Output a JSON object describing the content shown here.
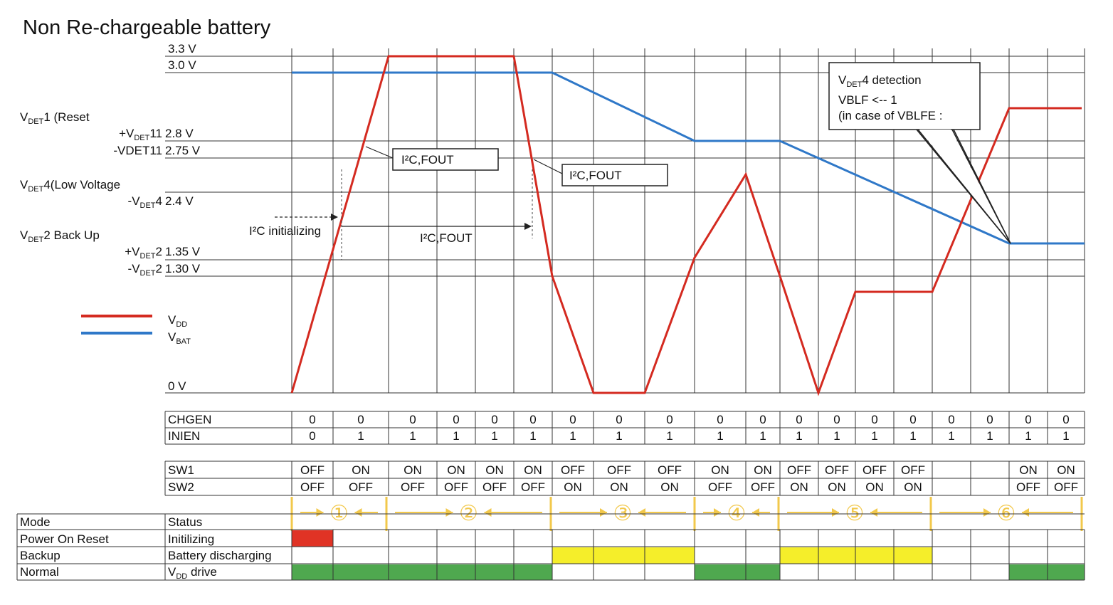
{
  "title": "Non Re-chargeable battery",
  "voltage_ticks": [
    "3.3 V",
    "3.0 V",
    "2.8 V",
    "2.75 V",
    "2.4 V",
    "1.35 V",
    "1.30 V",
    "0 V"
  ],
  "left_labels": {
    "vdet1_main": "V",
    "vdet1_sub": "DET",
    "vdet1_rest": "1 (Reset",
    "vdet11_plus_pre": "+V",
    "vdet11_plus_sub": "DET",
    "vdet11_plus_post": "11",
    "vdet11_minus": "-VDET11",
    "vdet4_main": "V",
    "vdet4_sub": "DET",
    "vdet4_rest": "4(Low Voltage",
    "vdet4_minus_pre": "-V",
    "vdet4_minus_sub": "DET",
    "vdet4_minus_post": "4",
    "vdet2_main": "V",
    "vdet2_sub": "DET",
    "vdet2_rest": "2  Back Up",
    "vdet2_plus_pre": "+V",
    "vdet2_plus_sub": "DET",
    "vdet2_plus_post": "2",
    "vdet2_minus_pre": "-V",
    "vdet2_minus_sub": "DET",
    "vdet2_minus_post": "2"
  },
  "legend": {
    "vdd_main": "V",
    "vdd_sub": "DD",
    "vbat_main": "V",
    "vbat_sub": "BAT",
    "vdd_color": "#d42a20",
    "vbat_color": "#2f78c8"
  },
  "annotations": {
    "i2c_fout_1": "I²C,FOUT",
    "i2c_fout_2": "I²C,FOUT",
    "i2c_fout_3": "I²C,FOUT",
    "i2c_initializing": "I²C initializing",
    "vdet4_box_line1_pre": "V",
    "vdet4_box_line1_sub": "DET",
    "vdet4_box_line1_post": "4 detection",
    "vdet4_box_line2": "VBLF  <--  1",
    "vdet4_box_line3": "(in case of VBLFE :"
  },
  "signal_table": {
    "row_labels": [
      "CHGEN",
      "INIEN",
      "SW1",
      "SW2"
    ],
    "chgen": [
      "0",
      "0",
      "0",
      "0",
      "0",
      "0",
      "0",
      "0",
      "0",
      "0",
      "0",
      "0",
      "0",
      "0",
      "0",
      "0",
      "0",
      "0",
      "0"
    ],
    "inien": [
      "0",
      "1",
      "1",
      "1",
      "1",
      "1",
      "1",
      "1",
      "1",
      "1",
      "1",
      "1",
      "1",
      "1",
      "1",
      "1",
      "1",
      "1",
      "1"
    ],
    "sw1": [
      "OFF",
      "ON",
      "ON",
      "ON",
      "ON",
      "ON",
      "OFF",
      "OFF",
      "OFF",
      "ON",
      "ON",
      "OFF",
      "OFF",
      "OFF",
      "OFF",
      "",
      "",
      "ON",
      "ON"
    ],
    "sw2": [
      "OFF",
      "OFF",
      "OFF",
      "OFF",
      "OFF",
      "OFF",
      "ON",
      "ON",
      "ON",
      "OFF",
      "OFF",
      "ON",
      "ON",
      "ON",
      "ON",
      "",
      "",
      "OFF",
      "OFF"
    ]
  },
  "phases": [
    "①",
    "②",
    "③",
    "④",
    "⑤",
    "⑥"
  ],
  "mode_table": {
    "header_mode": "Mode",
    "header_status": "Status",
    "rows": [
      {
        "mode": "Power On Reset",
        "status": "Initilizing"
      },
      {
        "mode": "Backup",
        "status": "Battery discharging"
      },
      {
        "mode": "Normal",
        "status_main": "V",
        "status_sub": "DD",
        "status_post": " drive"
      }
    ],
    "colors": {
      "reset": "#e03325",
      "backup": "#f5ee2a",
      "normal": "#4fa84f",
      "arrow": "#f2c84b"
    }
  }
}
